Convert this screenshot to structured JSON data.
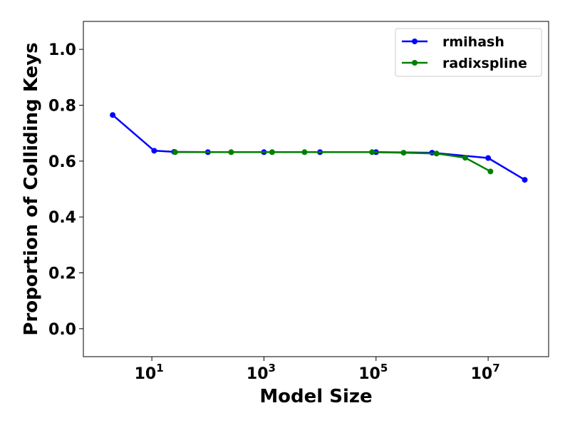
{
  "chart_data": {
    "type": "line",
    "title": "",
    "xlabel": "Model Size",
    "ylabel": "Proportion of Colliding Keys",
    "xscale": "log",
    "xlim": [
      0.6,
      120000000.0
    ],
    "ylim": [
      -0.1,
      1.1
    ],
    "yticks": [
      0.0,
      0.2,
      0.4,
      0.6,
      0.8,
      1.0
    ],
    "xticks": [
      {
        "value": 10,
        "base": "10",
        "exp": "1"
      },
      {
        "value": 1000,
        "base": "10",
        "exp": "3"
      },
      {
        "value": 100000,
        "base": "10",
        "exp": "5"
      },
      {
        "value": 10000000,
        "base": "10",
        "exp": "7"
      }
    ],
    "grid": false,
    "legend": "top-right",
    "series": [
      {
        "name": "rmihash",
        "color": "#0000ff",
        "points": [
          [
            2,
            0.765
          ],
          [
            11,
            0.637
          ],
          [
            25,
            0.633
          ],
          [
            100,
            0.632
          ],
          [
            1000,
            0.632
          ],
          [
            10000,
            0.632
          ],
          [
            100000,
            0.632
          ],
          [
            1000000,
            0.63
          ],
          [
            10000000,
            0.611
          ],
          [
            45000000,
            0.533
          ]
        ]
      },
      {
        "name": "radixspline",
        "color": "#008000",
        "points": [
          [
            26,
            0.632
          ],
          [
            260,
            0.632
          ],
          [
            1400,
            0.632
          ],
          [
            5300,
            0.632
          ],
          [
            85000,
            0.632
          ],
          [
            310000,
            0.63
          ],
          [
            1200000,
            0.627
          ],
          [
            3900000,
            0.612
          ],
          [
            11000000,
            0.563
          ]
        ]
      }
    ]
  }
}
